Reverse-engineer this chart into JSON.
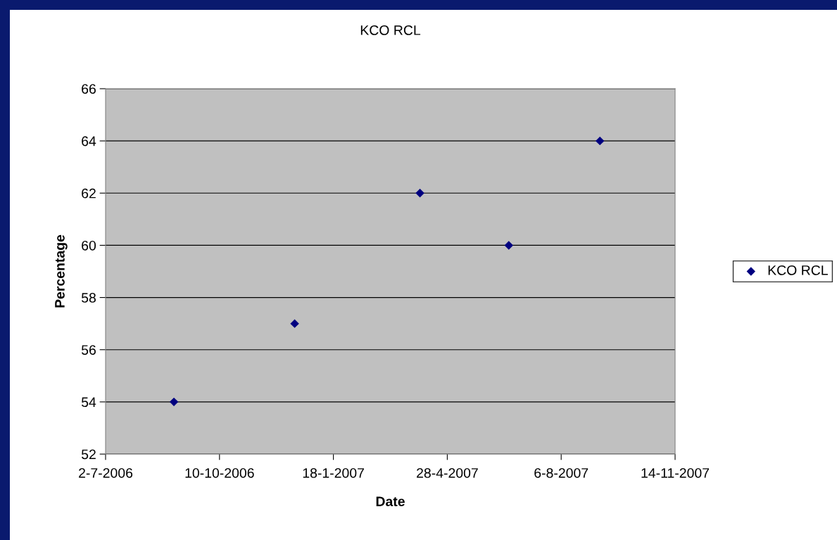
{
  "chart_data": {
    "type": "scatter",
    "title": "KCO RCL",
    "xlabel": "Date",
    "ylabel": "Percentage",
    "x": [
      "2006-08-31",
      "2006-12-15",
      "2007-04-04",
      "2007-06-21",
      "2007-09-09"
    ],
    "series": [
      {
        "name": "KCO RCL",
        "color": "#000080",
        "values": [
          54,
          57,
          62,
          60,
          64
        ]
      }
    ],
    "xlim": [
      "2006-07-02",
      "2007-11-14"
    ],
    "xticks": [
      {
        "value": "2006-07-02",
        "label": "2-7-2006"
      },
      {
        "value": "2006-10-10",
        "label": "10-10-2006"
      },
      {
        "value": "2007-01-18",
        "label": "18-1-2007"
      },
      {
        "value": "2007-04-28",
        "label": "28-4-2007"
      },
      {
        "value": "2007-08-06",
        "label": "6-8-2007"
      },
      {
        "value": "2007-11-14",
        "label": "14-11-2007"
      }
    ],
    "ylim": [
      52,
      66
    ],
    "yticks": [
      52,
      54,
      56,
      58,
      60,
      62,
      64,
      66
    ],
    "grid": "y",
    "legend": "right",
    "marker": "diamond"
  }
}
